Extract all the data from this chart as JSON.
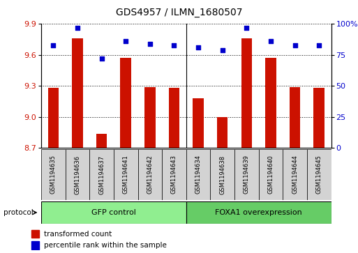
{
  "title": "GDS4957 / ILMN_1680507",
  "samples": [
    "GSM1194635",
    "GSM1194636",
    "GSM1194637",
    "GSM1194641",
    "GSM1194642",
    "GSM1194643",
    "GSM1194634",
    "GSM1194638",
    "GSM1194639",
    "GSM1194640",
    "GSM1194644",
    "GSM1194645"
  ],
  "transformed_counts": [
    9.28,
    9.76,
    8.84,
    9.57,
    9.29,
    9.28,
    9.18,
    9.0,
    9.76,
    9.57,
    9.29,
    9.28
  ],
  "percentile_ranks": [
    83,
    97,
    72,
    86,
    84,
    83,
    81,
    79,
    97,
    86,
    83,
    83
  ],
  "bar_color": "#CC1100",
  "dot_color": "#0000CC",
  "ylim_left": [
    8.7,
    9.9
  ],
  "yticks_left": [
    8.7,
    9.0,
    9.3,
    9.6,
    9.9
  ],
  "ylim_right": [
    0,
    100
  ],
  "yticks_right": [
    0,
    25,
    50,
    75,
    100
  ],
  "yticklabels_right": [
    "0",
    "25",
    "50",
    "75",
    "100%"
  ],
  "groups": [
    {
      "label": "GFP control",
      "start": 0,
      "end": 6,
      "color": "#90EE90"
    },
    {
      "label": "FOXA1 overexpression",
      "start": 6,
      "end": 12,
      "color": "#66CC66"
    }
  ],
  "group_divider": 5.5,
  "protocol_label": "protocol",
  "legend_bar_label": "transformed count",
  "legend_dot_label": "percentile rank within the sample",
  "grid_color": "#000000",
  "background_color": "#ffffff",
  "sample_box_color": "#D3D3D3",
  "bar_width": 0.45
}
